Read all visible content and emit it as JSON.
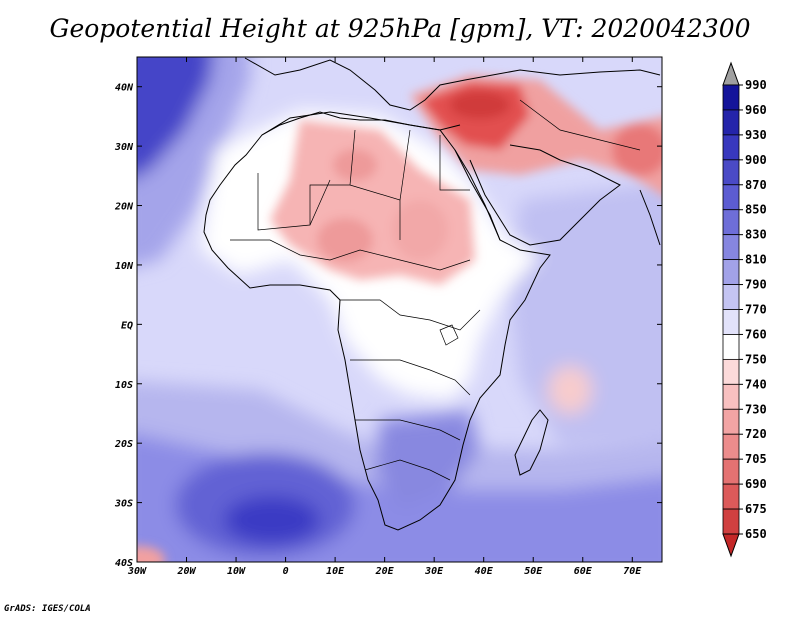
{
  "title": "Geopotential Height at 925hPa [gpm], VT: 2020042300",
  "credit": "GrADS: IGES/COLA",
  "map": {
    "lon_range": [
      -30,
      76
    ],
    "lat_range": [
      -40,
      45
    ],
    "x_ticks": [
      "30W",
      "20W",
      "10W",
      "0",
      "10E",
      "20E",
      "30E",
      "40E",
      "50E",
      "60E",
      "70E"
    ],
    "x_tick_values": [
      -30,
      -20,
      -10,
      0,
      10,
      20,
      30,
      40,
      50,
      60,
      70
    ],
    "y_ticks": [
      "40N",
      "30N",
      "20N",
      "10N",
      "EQ",
      "10S",
      "20S",
      "30S",
      "40S"
    ],
    "y_tick_values": [
      40,
      30,
      20,
      10,
      0,
      -10,
      -20,
      -30,
      -40
    ],
    "background_color": "#d8d8fa",
    "regions": [
      {
        "name": "north-atlantic-high",
        "value": 930,
        "color": "#4545c8"
      },
      {
        "name": "south-atlantic-high",
        "value": 900,
        "color": "#3a3ac4"
      },
      {
        "name": "africa-interior",
        "value": 770,
        "color": "#ffffff"
      },
      {
        "name": "sahara-low",
        "value": 740,
        "color": "#f6b4b4"
      },
      {
        "name": "middle-east-low",
        "value": 690,
        "color": "#e25050"
      },
      {
        "name": "southern-ocean",
        "value": 830,
        "color": "#8c8ce6"
      },
      {
        "name": "indian-ocean",
        "value": 790,
        "color": "#c0c0f2"
      },
      {
        "name": "madagascar-low",
        "value": 750,
        "color": "#f8cccc"
      },
      {
        "name": "southern-africa-high",
        "value": 850,
        "color": "#7272dc"
      }
    ]
  },
  "colorbar": {
    "levels": [
      "990",
      "960",
      "930",
      "900",
      "870",
      "850",
      "830",
      "810",
      "790",
      "770",
      "760",
      "750",
      "740",
      "730",
      "720",
      "705",
      "690",
      "675",
      "650"
    ],
    "colors": [
      "#14149a",
      "#2424aa",
      "#3838be",
      "#4a4ac6",
      "#5c5cd2",
      "#6e6ed8",
      "#8686e0",
      "#a2a2e8",
      "#c4c4f2",
      "#e2e2fa",
      "#ffffff",
      "#fcdada",
      "#f8c0c0",
      "#f2a4a4",
      "#ec8c8c",
      "#e47272",
      "#dc5a5a",
      "#d04040",
      "#c42828"
    ],
    "top_arrow_color": "#a0a0a0",
    "bottom_arrow_color": "#c42828"
  }
}
